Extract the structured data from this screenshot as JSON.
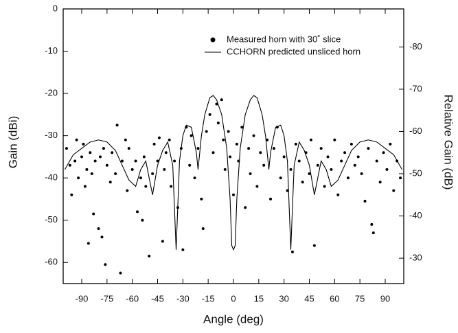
{
  "chart_data": {
    "type": "scatter",
    "x_label": "Angle (deg)",
    "y_label": "Gain (dBi)",
    "y2_label": "Relative Gain (dB)",
    "xlim": [
      -101,
      101
    ],
    "xticks": [
      -90,
      -75,
      -60,
      -45,
      -30,
      -15,
      0,
      15,
      30,
      45,
      60,
      75,
      90
    ],
    "ylim": [
      -65,
      0
    ],
    "yticks": [
      0,
      -10,
      -20,
      -30,
      -40,
      -50,
      -60
    ],
    "y2lim": [
      -24,
      -89
    ],
    "y2ticks": [
      -30,
      -40,
      -50,
      -60,
      -70,
      -80
    ],
    "series": [
      {
        "name": "Measured horn with 30˚ slice",
        "type": "scatter",
        "color": "#000000",
        "x": [
          -99,
          -97,
          -96,
          -94,
          -93,
          -92,
          -90,
          -89,
          -88,
          -87,
          -86,
          -85,
          -84,
          -83,
          -82,
          -80,
          -79,
          -78,
          -77,
          -76,
          -75,
          -73,
          -72,
          -70,
          -69,
          -67,
          -66,
          -64,
          -63,
          -62,
          -60,
          -58,
          -57,
          -55,
          -54,
          -53,
          -52,
          -50,
          -48,
          -47,
          -45,
          -44,
          -42,
          -41,
          -40,
          -38,
          -37,
          -35,
          -33,
          -31,
          -30,
          -28,
          -26,
          -25,
          -23,
          -21,
          -19,
          -18,
          -16,
          -14,
          -12,
          -10,
          -9,
          -7,
          -6,
          -5,
          -3,
          -2,
          0,
          2,
          3,
          5,
          7,
          9,
          10,
          12,
          14,
          16,
          18,
          20,
          22,
          24,
          26,
          28,
          30,
          32,
          34,
          35,
          37,
          39,
          41,
          43,
          45,
          46,
          48,
          50,
          52,
          54,
          56,
          58,
          60,
          62,
          64,
          66,
          68,
          70,
          72,
          74,
          76,
          78,
          80,
          82,
          83,
          85,
          87,
          89,
          91,
          93,
          95,
          97,
          99
        ],
        "values": [
          -33,
          -37,
          -44,
          -36,
          -31,
          -40,
          -35,
          -32,
          -42,
          -38,
          -55.5,
          -34,
          -39,
          -48.5,
          -36,
          -52,
          -35,
          -54,
          -33,
          -60.5,
          -37,
          -41,
          -34,
          -39,
          -27.5,
          -62.5,
          -36,
          -31,
          -43,
          -33,
          -38,
          -36,
          -48,
          -40,
          -50,
          -35,
          -42,
          -58.5,
          -39,
          -32,
          -36,
          -30.5,
          -55,
          -38,
          -34,
          -31,
          -42,
          -36,
          -47,
          -33,
          -57,
          -28,
          -37,
          -30,
          -40,
          -33,
          -45,
          -52,
          -29,
          -25,
          -34,
          -22.5,
          -27,
          -21.5,
          -31,
          -38,
          -29,
          -35,
          -44,
          -32,
          -36,
          -28,
          -47,
          -33,
          -39,
          -30,
          -42,
          -34,
          -37,
          -31,
          -45,
          -33,
          -28,
          -40,
          -35,
          -43,
          -38,
          -57.5,
          -32,
          -36,
          -41,
          -34,
          -39,
          -31,
          -56,
          -37,
          -33,
          -42,
          -35,
          -38,
          -31,
          -44,
          -36,
          -34,
          -40,
          -32,
          -37,
          -35,
          -39,
          -45.5,
          -33,
          -51,
          -53,
          -36,
          -41,
          -34,
          -38,
          -32,
          -43,
          -36,
          -40
        ]
      },
      {
        "name": "CCHORN predicted unsliced horn",
        "type": "line",
        "color": "#000000",
        "x": [
          -100,
          -95,
          -90,
          -85,
          -80,
          -75,
          -70,
          -66,
          -62,
          -58,
          -55,
          -52,
          -48,
          -45,
          -42,
          -39,
          -36,
          -34,
          -32,
          -30,
          -28,
          -25,
          -22,
          -21,
          -19,
          -17,
          -14,
          -12,
          -10,
          -7,
          -4,
          -2,
          -1,
          0,
          1,
          2,
          4,
          7,
          10,
          12,
          14,
          17,
          19,
          21,
          22,
          25,
          28,
          30,
          32,
          34,
          36,
          39,
          42,
          45,
          48,
          52,
          55,
          58,
          62,
          66,
          70,
          75,
          80,
          85,
          90,
          95,
          100
        ],
        "values": [
          -38,
          -34.5,
          -33,
          -31.5,
          -31,
          -31.5,
          -33.5,
          -37,
          -40.5,
          -42,
          -38,
          -36,
          -44,
          -37,
          -33.5,
          -31.5,
          -37,
          -57,
          -36,
          -30,
          -27.5,
          -28,
          -34,
          -38,
          -30,
          -25,
          -21,
          -20.5,
          -21.5,
          -25,
          -33,
          -45,
          -56,
          -57,
          -56,
          -45,
          -33,
          -25,
          -21.5,
          -20.5,
          -21,
          -25,
          -30,
          -38,
          -34,
          -28,
          -27.5,
          -30,
          -36,
          -57,
          -37,
          -31.5,
          -33.5,
          -37,
          -44,
          -36,
          -38,
          -42,
          -40.5,
          -37,
          -33.5,
          -31.5,
          -31,
          -31.5,
          -33,
          -34.5,
          -38
        ]
      }
    ]
  }
}
